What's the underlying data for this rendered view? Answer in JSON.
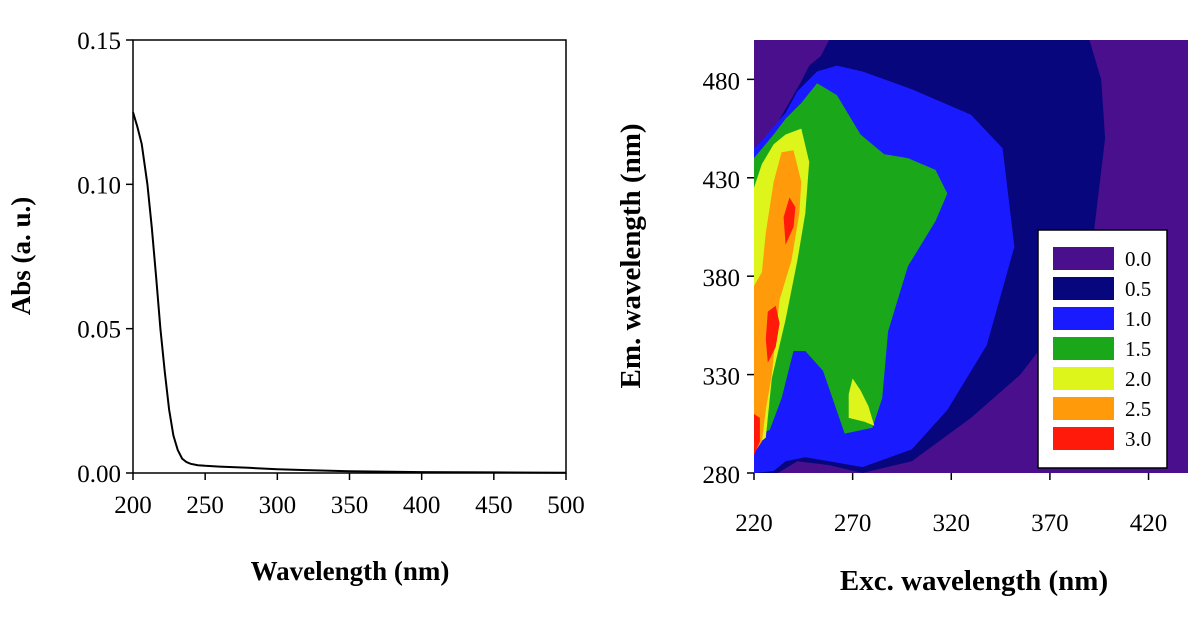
{
  "chart_data": [
    {
      "type": "line",
      "xlabel": "Wavelength (nm)",
      "ylabel": "Abs (a. u.)",
      "xlim": [
        200,
        500
      ],
      "ylim": [
        0,
        0.15
      ],
      "xticks": [
        "200",
        "250",
        "300",
        "350",
        "400",
        "450",
        "500"
      ],
      "yticks": [
        "0.00",
        "0.05",
        "0.10",
        "0.15"
      ],
      "series": [
        {
          "x": [
            200,
            203,
            206,
            210,
            213,
            216,
            219,
            222,
            225,
            228,
            231,
            234,
            237,
            240,
            245,
            250,
            260,
            280,
            300,
            320,
            350,
            400,
            450,
            500
          ],
          "values": [
            0.125,
            0.12,
            0.114,
            0.1,
            0.085,
            0.068,
            0.05,
            0.035,
            0.022,
            0.013,
            0.008,
            0.005,
            0.0038,
            0.0032,
            0.0027,
            0.0025,
            0.0022,
            0.0018,
            0.0013,
            0.001,
            0.0006,
            0.0003,
            0.0002,
            0.0001
          ],
          "color": "#000000"
        }
      ],
      "grid": false
    },
    {
      "type": "heatmap",
      "xlabel": "Exc. wavelength (nm)",
      "ylabel": "Em. wavelength (nm)",
      "xlim": [
        220,
        440
      ],
      "ylim": [
        280,
        500
      ],
      "xticks": [
        "220",
        "270",
        "320",
        "370",
        "420"
      ],
      "yticks": [
        "280",
        "330",
        "380",
        "430",
        "480"
      ],
      "background_color": "#4a0f8c",
      "legend": {
        "placement": "bottom-right",
        "levels": [
          {
            "label": "0.0",
            "color": "#4a0f8c"
          },
          {
            "label": "0.5",
            "color": "#07067d"
          },
          {
            "label": "1.0",
            "color": "#1a1aff"
          },
          {
            "label": "1.5",
            "color": "#1aa81a"
          },
          {
            "label": "2.0",
            "color": "#ddf51a"
          },
          {
            "label": "2.5",
            "color": "#ff9a0a"
          },
          {
            "label": "3.0",
            "color": "#ff1a0a"
          }
        ]
      },
      "regions": [
        {
          "level": 0.5,
          "points": [
            [
              220,
              280
            ],
            [
              232,
              280
            ],
            [
              242,
              286
            ],
            [
              258,
              284
            ],
            [
              275,
              280
            ],
            [
              300,
              286
            ],
            [
              330,
              308
            ],
            [
              355,
              330
            ],
            [
              378,
              360
            ],
            [
              392,
              400
            ],
            [
              398,
              450
            ],
            [
              396,
              480
            ],
            [
              390,
              500
            ],
            [
              258,
              500
            ],
            [
              254,
              492
            ],
            [
              248,
              487
            ],
            [
              244,
              479
            ],
            [
              240,
              472
            ],
            [
              236,
              465
            ],
            [
              232,
              458
            ],
            [
              228,
              452
            ],
            [
              224,
              445
            ],
            [
              220,
              441
            ]
          ]
        },
        {
          "level": 1.0,
          "points": [
            [
              220,
              280
            ],
            [
              230,
              281
            ],
            [
              236,
              286
            ],
            [
              246,
              288
            ],
            [
              258,
              286
            ],
            [
              275,
              283
            ],
            [
              300,
              292
            ],
            [
              318,
              312
            ],
            [
              338,
              345
            ],
            [
              352,
              395
            ],
            [
              346,
              445
            ],
            [
              330,
              462
            ],
            [
              300,
              475
            ],
            [
              275,
              484
            ],
            [
              262,
              487
            ],
            [
              252,
              484
            ],
            [
              242,
              474
            ],
            [
              236,
              463
            ],
            [
              230,
              456
            ],
            [
              225,
              450
            ],
            [
              220,
              445
            ]
          ]
        },
        {
          "level": 1.5,
          "points": [
            [
              220,
              298
            ],
            [
              228,
              302
            ],
            [
              234,
              318
            ],
            [
              240,
              342
            ],
            [
              246,
              342
            ],
            [
              255,
              332
            ],
            [
              266,
              300
            ],
            [
              280,
              303
            ],
            [
              285,
              318
            ],
            [
              288,
              352
            ],
            [
              298,
              385
            ],
            [
              312,
              408
            ],
            [
              318,
              422
            ],
            [
              312,
              434
            ],
            [
              298,
              440
            ],
            [
              286,
              442
            ],
            [
              274,
              452
            ],
            [
              262,
              472
            ],
            [
              252,
              478
            ],
            [
              244,
              468
            ],
            [
              236,
              460
            ],
            [
              230,
              452
            ],
            [
              225,
              446
            ],
            [
              220,
              440
            ]
          ]
        },
        {
          "level": 2.0,
          "points": [
            [
              220,
              293
            ],
            [
              226,
              298
            ],
            [
              229,
              328
            ],
            [
              236,
              358
            ],
            [
              242,
              388
            ],
            [
              246,
              412
            ],
            [
              248,
              438
            ],
            [
              244,
              455
            ],
            [
              236,
              452
            ],
            [
              230,
              447
            ],
            [
              224,
              437
            ],
            [
              220,
              425
            ]
          ]
        },
        {
          "level": 2.0,
          "points": [
            [
              268,
              308
            ],
            [
              276,
              306
            ],
            [
              281,
              304
            ],
            [
              278,
              314
            ],
            [
              274,
              322
            ],
            [
              270,
              328
            ],
            [
              268,
              320
            ]
          ]
        },
        {
          "level": 2.5,
          "points": [
            [
              220,
              290
            ],
            [
              224,
              296
            ],
            [
              226,
              312
            ],
            [
              229,
              330
            ],
            [
              233,
              368
            ],
            [
              239,
              388
            ],
            [
              243,
              412
            ],
            [
              244,
              428
            ],
            [
              240,
              444
            ],
            [
              234,
              443
            ],
            [
              230,
              428
            ],
            [
              226,
              402
            ],
            [
              224,
              382
            ],
            [
              220,
              375
            ]
          ]
        },
        {
          "level": 3.0,
          "points": [
            [
              227,
              336
            ],
            [
              231,
              344
            ],
            [
              233,
              356
            ],
            [
              231,
              365
            ],
            [
              227,
              362
            ],
            [
              226,
              348
            ]
          ]
        },
        {
          "level": 3.0,
          "points": [
            [
              236,
              396
            ],
            [
              240,
              405
            ],
            [
              241,
              415
            ],
            [
              238,
              420
            ],
            [
              235,
              410
            ]
          ]
        },
        {
          "level": 3.0,
          "points": [
            [
              220,
              289
            ],
            [
              223,
              296
            ],
            [
              223,
              308
            ],
            [
              220,
              310
            ]
          ]
        }
      ]
    }
  ]
}
